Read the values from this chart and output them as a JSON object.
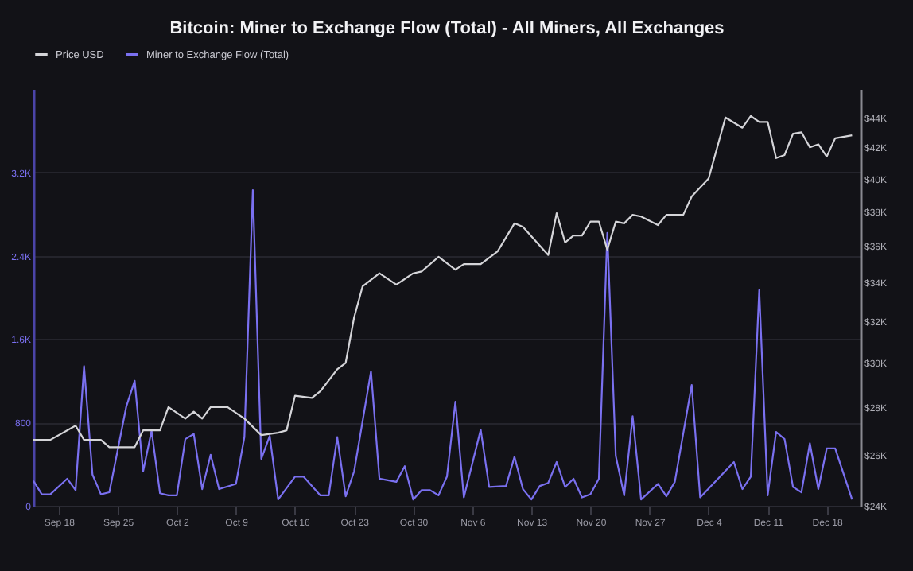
{
  "chart_data": {
    "type": "line",
    "title": "Bitcoin: Miner to Exchange Flow (Total) - All Miners, All Exchanges",
    "legend": "top",
    "grid": "y",
    "log": "y2",
    "xlim": [
      "--09-15",
      "--12-22"
    ],
    "xticks": [
      {
        "value": "--09-18",
        "label": "Sep 18"
      },
      {
        "value": "--09-25",
        "label": "Sep 25"
      },
      {
        "value": "--10-02",
        "label": "Oct 2"
      },
      {
        "value": "--10-09",
        "label": "Oct 9"
      },
      {
        "value": "--10-16",
        "label": "Oct 16"
      },
      {
        "value": "--10-23",
        "label": "Oct 23"
      },
      {
        "value": "--10-30",
        "label": "Oct 30"
      },
      {
        "value": "--11-06",
        "label": "Nov 6"
      },
      {
        "value": "--11-13",
        "label": "Nov 13"
      },
      {
        "value": "--11-20",
        "label": "Nov 20"
      },
      {
        "value": "--11-27",
        "label": "Nov 27"
      },
      {
        "value": "--12-04",
        "label": "Dec 4"
      },
      {
        "value": "--12-11",
        "label": "Dec 11"
      },
      {
        "value": "--12-18",
        "label": "Dec 18"
      }
    ],
    "ylim": [
      0,
      4000
    ],
    "yticks": [
      0,
      800,
      {
        "value": 1600,
        "label": "1.6K"
      },
      {
        "value": 2400,
        "label": "2.4K"
      },
      {
        "value": 3200,
        "label": "3.2K"
      }
    ],
    "y2lim": [
      24000,
      46000
    ],
    "y2ticks": [
      {
        "value": 24000,
        "label": "$24K"
      },
      {
        "value": 26000,
        "label": "$26K"
      },
      {
        "value": 28000,
        "label": "$28K"
      },
      {
        "value": 30000,
        "label": "$30K"
      },
      {
        "value": 32000,
        "label": "$32K"
      },
      {
        "value": 34000,
        "label": "$34K"
      },
      {
        "value": 36000,
        "label": "$36K"
      },
      {
        "value": 38000,
        "label": "$38K"
      },
      {
        "value": 40000,
        "label": "$40K"
      },
      {
        "value": 42000,
        "label": "$42K"
      },
      {
        "value": 44000,
        "label": "$44K"
      }
    ],
    "series": [
      {
        "name": "Price USD",
        "color": "#d4d4d8",
        "axis": "y2",
        "x": [
          "--09-15",
          "--09-17",
          "--09-20",
          "--09-21",
          "--09-23",
          "--09-24",
          "--09-27",
          "--09-28",
          "--09-30",
          "--10-01",
          "--10-03",
          "--10-04",
          "--10-05",
          "--10-06",
          "--10-08",
          "--10-10",
          "--10-12",
          "--10-14",
          "--10-15",
          "--10-16",
          "--10-18",
          "--10-19",
          "--10-21",
          "--10-22",
          "--10-23",
          "--10-24",
          "--10-26",
          "--10-28",
          "--10-30",
          "--10-31",
          "--11-02",
          "--11-04",
          "--11-05",
          "--11-07",
          "--11-09",
          "--11-11",
          "--11-12",
          "--11-15",
          "--11-16",
          "--11-17",
          "--11-18",
          "--11-19",
          "--11-20",
          "--11-21",
          "--11-22",
          "--11-23",
          "--11-24",
          "--11-25",
          "--11-26",
          "--11-28",
          "--11-29",
          "--12-01",
          "--12-02",
          "--12-04",
          "--12-06",
          "--12-08",
          "--12-09",
          "--12-10",
          "--12-11",
          "--12-12",
          "--12-13",
          "--12-14",
          "--12-15",
          "--12-16",
          "--12-17",
          "--12-18",
          "--12-19",
          "--12-21"
        ],
        "values": [
          26600,
          26600,
          27200,
          26600,
          26600,
          26300,
          26300,
          27000,
          27000,
          28000,
          27500,
          27800,
          27500,
          28000,
          28000,
          27500,
          26800,
          26900,
          27000,
          28500,
          28400,
          28700,
          29700,
          30000,
          32200,
          33800,
          34500,
          33900,
          34500,
          34600,
          35400,
          34700,
          35000,
          35000,
          35700,
          37300,
          37100,
          35500,
          37900,
          36200,
          36600,
          36600,
          37400,
          37400,
          35800,
          37400,
          37300,
          37800,
          37700,
          37200,
          37800,
          37800,
          38900,
          40000,
          44000,
          43300,
          44100,
          43700,
          43700,
          41300,
          41500,
          42900,
          43000,
          42000,
          42200,
          41400,
          42600,
          42800
        ]
      },
      {
        "name": "Miner to Exchange Flow (Total)",
        "color": "#7a70f0",
        "x": [
          "--09-15",
          "--09-16",
          "--09-17",
          "--09-19",
          "--09-20",
          "--09-21",
          "--09-22",
          "--09-23",
          "--09-24",
          "--09-26",
          "--09-27",
          "--09-28",
          "--09-29",
          "--09-30",
          "--10-01",
          "--10-02",
          "--10-03",
          "--10-04",
          "--10-05",
          "--10-06",
          "--10-07",
          "--10-09",
          "--10-10",
          "--10-11",
          "--10-12",
          "--10-13",
          "--10-14",
          "--10-16",
          "--10-17",
          "--10-19",
          "--10-20",
          "--10-21",
          "--10-22",
          "--10-23",
          "--10-25",
          "--10-26",
          "--10-28",
          "--10-29",
          "--10-30",
          "--10-31",
          "--11-01",
          "--11-02",
          "--11-03",
          "--11-04",
          "--11-05",
          "--11-07",
          "--11-08",
          "--11-10",
          "--11-11",
          "--11-12",
          "--11-13",
          "--11-14",
          "--11-15",
          "--11-16",
          "--11-17",
          "--11-18",
          "--11-19",
          "--11-20",
          "--11-21",
          "--11-22",
          "--11-23",
          "--11-24",
          "--11-25",
          "--11-26",
          "--11-28",
          "--11-29",
          "--11-30",
          "--12-02",
          "--12-03",
          "--12-07",
          "--12-08",
          "--12-09",
          "--12-10",
          "--12-11",
          "--12-12",
          "--12-13",
          "--12-14",
          "--12-15",
          "--12-16",
          "--12-17",
          "--12-18",
          "--12-19",
          "--12-21"
        ],
        "values": [
          240,
          110,
          110,
          260,
          150,
          1340,
          300,
          110,
          130,
          950,
          1200,
          330,
          720,
          120,
          100,
          100,
          640,
          690,
          160,
          490,
          160,
          210,
          660,
          3030,
          450,
          670,
          60,
          280,
          280,
          100,
          100,
          660,
          90,
          330,
          1290,
          260,
          230,
          380,
          60,
          150,
          150,
          100,
          280,
          1000,
          80,
          730,
          180,
          190,
          470,
          160,
          60,
          190,
          220,
          420,
          180,
          260,
          80,
          110,
          260,
          2620,
          480,
          100,
          860,
          60,
          210,
          90,
          230,
          1160,
          80,
          420,
          160,
          280,
          2070,
          100,
          710,
          640,
          180,
          130,
          600,
          160,
          550,
          550,
          60
        ]
      }
    ]
  }
}
